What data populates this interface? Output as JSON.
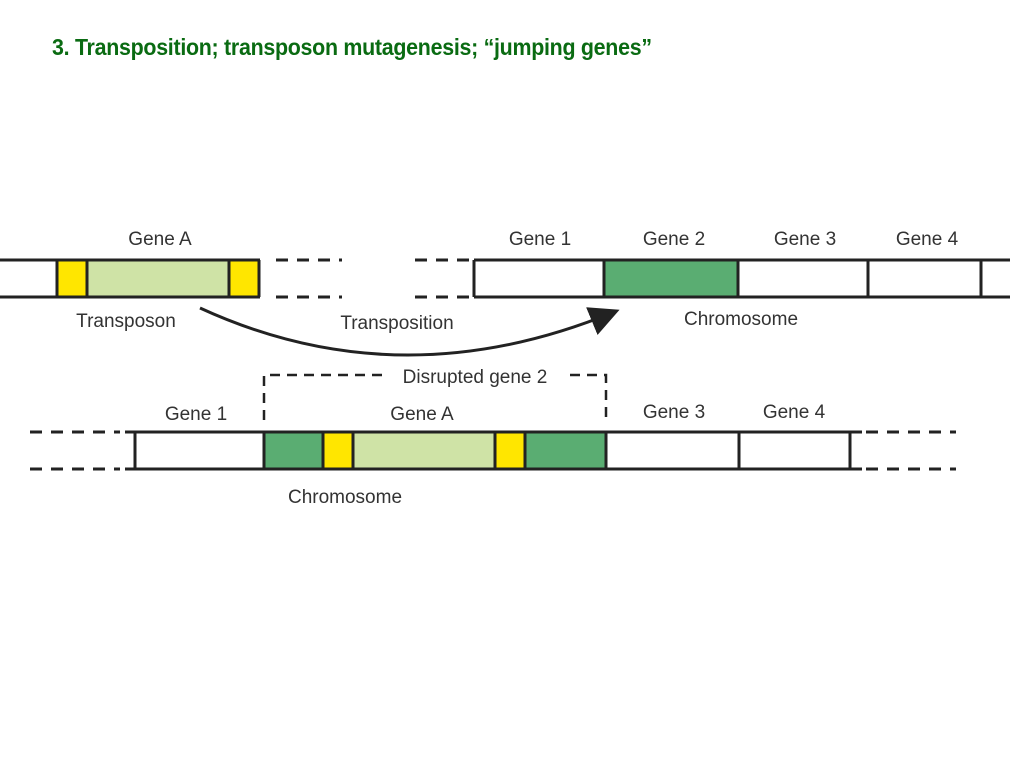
{
  "slide": {
    "title": "3. Transposition; transposon mutagenesis; “jumping genes”"
  },
  "diagram": {
    "top": {
      "transposon_gene_label": "Gene A",
      "transposon_label": "Transposon",
      "arrow_label": "Transposition",
      "chromosome_genes": [
        "Gene 1",
        "Gene 2",
        "Gene 3",
        "Gene 4"
      ],
      "chromosome_label": "Chromosome"
    },
    "bottom": {
      "bracket_label": "Disrupted gene 2",
      "genes": [
        "Gene 1",
        "Gene A",
        "Gene 3",
        "Gene 4"
      ],
      "chromosome_label": "Chromosome"
    },
    "colors": {
      "title": "#0a6b12",
      "inverted_repeat": "#ffe600",
      "transposon_body": "#cfe3a6",
      "target_gene": "#5aad72"
    }
  }
}
